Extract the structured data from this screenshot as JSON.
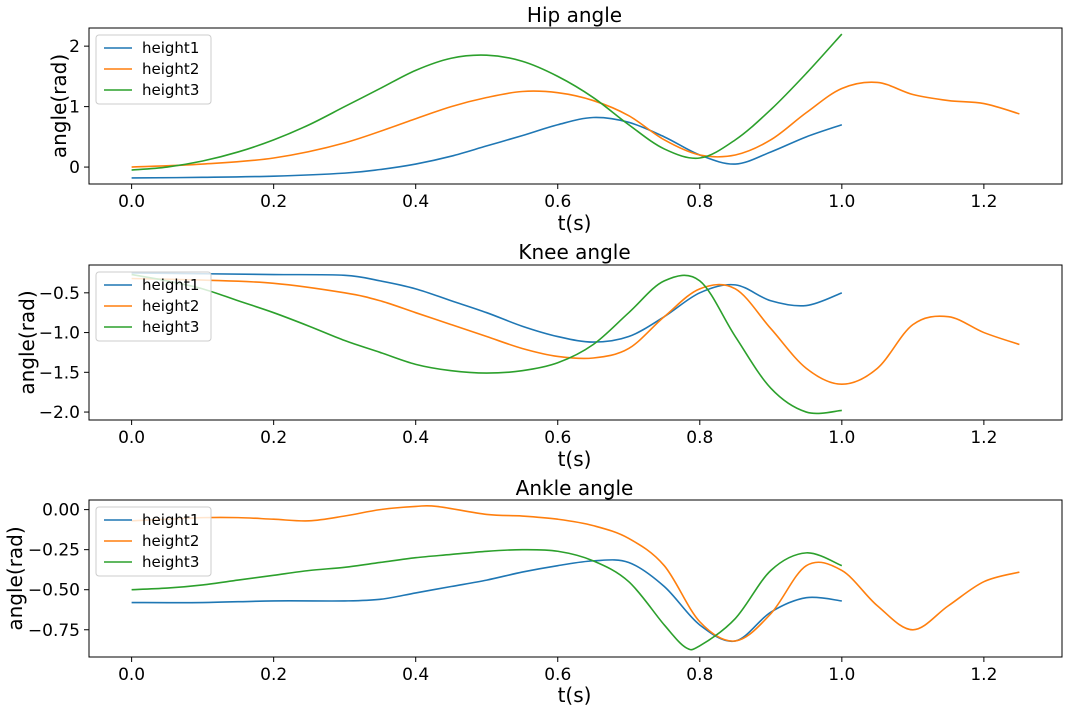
{
  "chart_data": [
    {
      "type": "line",
      "title": "Hip angle",
      "xlabel": "t(s)",
      "ylabel": "angle(rad)",
      "xlim": [
        -0.06,
        1.31
      ],
      "ylim": [
        -0.28,
        2.3
      ],
      "xticks": [
        0.0,
        0.2,
        0.4,
        0.6,
        0.8,
        1.0,
        1.2
      ],
      "xtick_labels": [
        "0.0",
        "0.2",
        "0.4",
        "0.6",
        "0.8",
        "1.0",
        "1.2"
      ],
      "yticks": [
        0,
        1,
        2
      ],
      "ytick_labels": [
        "0",
        "1",
        "2"
      ],
      "legend": "top-left",
      "series": [
        {
          "name": "height1",
          "color": "#1f77b4",
          "x": [
            0,
            0.1,
            0.2,
            0.3,
            0.35,
            0.4,
            0.45,
            0.5,
            0.55,
            0.6,
            0.65,
            0.7,
            0.75,
            0.8,
            0.85,
            0.9,
            0.95,
            1.0
          ],
          "y": [
            -0.18,
            -0.17,
            -0.15,
            -0.1,
            -0.04,
            0.05,
            0.18,
            0.35,
            0.52,
            0.7,
            0.82,
            0.74,
            0.5,
            0.2,
            0.05,
            0.25,
            0.5,
            0.7
          ]
        },
        {
          "name": "height2",
          "color": "#ff7f0e",
          "x": [
            0,
            0.1,
            0.2,
            0.3,
            0.4,
            0.45,
            0.5,
            0.55,
            0.6,
            0.65,
            0.7,
            0.75,
            0.8,
            0.85,
            0.9,
            0.95,
            1.0,
            1.05,
            1.1,
            1.15,
            1.2,
            1.25
          ],
          "y": [
            0.0,
            0.05,
            0.15,
            0.4,
            0.8,
            1.0,
            1.15,
            1.25,
            1.23,
            1.1,
            0.85,
            0.45,
            0.2,
            0.2,
            0.45,
            0.9,
            1.3,
            1.4,
            1.2,
            1.1,
            1.05,
            0.88
          ]
        },
        {
          "name": "height3",
          "color": "#2ca02c",
          "x": [
            0,
            0.05,
            0.1,
            0.15,
            0.2,
            0.25,
            0.3,
            0.35,
            0.4,
            0.45,
            0.5,
            0.55,
            0.6,
            0.65,
            0.7,
            0.75,
            0.8,
            0.85,
            0.9,
            0.95,
            1.0
          ],
          "y": [
            -0.05,
            0.0,
            0.1,
            0.25,
            0.45,
            0.7,
            1.0,
            1.3,
            1.6,
            1.8,
            1.85,
            1.75,
            1.5,
            1.15,
            0.7,
            0.3,
            0.15,
            0.45,
            0.95,
            1.55,
            2.2
          ]
        }
      ]
    },
    {
      "type": "line",
      "title": "Knee angle",
      "xlabel": "t(s)",
      "ylabel": "angle(rad)",
      "xlim": [
        -0.06,
        1.31
      ],
      "ylim": [
        -2.1,
        -0.15
      ],
      "xticks": [
        0.0,
        0.2,
        0.4,
        0.6,
        0.8,
        1.0,
        1.2
      ],
      "xtick_labels": [
        "0.0",
        "0.2",
        "0.4",
        "0.6",
        "0.8",
        "1.0",
        "1.2"
      ],
      "yticks": [
        -0.5,
        -1.0,
        -1.5,
        -2.0
      ],
      "ytick_labels": [
        "−0.5",
        "−1.0",
        "−1.5",
        "−2.0"
      ],
      "legend": "top-left",
      "series": [
        {
          "name": "height1",
          "color": "#1f77b4",
          "x": [
            0,
            0.1,
            0.2,
            0.3,
            0.35,
            0.4,
            0.45,
            0.5,
            0.55,
            0.6,
            0.65,
            0.7,
            0.75,
            0.8,
            0.85,
            0.9,
            0.95,
            1.0
          ],
          "y": [
            -0.25,
            -0.26,
            -0.27,
            -0.28,
            -0.35,
            -0.45,
            -0.6,
            -0.75,
            -0.92,
            -1.05,
            -1.12,
            -1.05,
            -0.8,
            -0.5,
            -0.4,
            -0.6,
            -0.66,
            -0.5
          ]
        },
        {
          "name": "height2",
          "color": "#ff7f0e",
          "x": [
            0,
            0.1,
            0.2,
            0.3,
            0.35,
            0.4,
            0.45,
            0.5,
            0.55,
            0.6,
            0.65,
            0.7,
            0.75,
            0.8,
            0.85,
            0.9,
            0.95,
            1.0,
            1.05,
            1.1,
            1.15,
            1.2,
            1.25
          ],
          "y": [
            -0.32,
            -0.34,
            -0.38,
            -0.5,
            -0.6,
            -0.75,
            -0.9,
            -1.05,
            -1.2,
            -1.3,
            -1.32,
            -1.2,
            -0.8,
            -0.45,
            -0.45,
            -0.95,
            -1.45,
            -1.65,
            -1.45,
            -0.9,
            -0.8,
            -1.0,
            -1.15
          ]
        },
        {
          "name": "height3",
          "color": "#2ca02c",
          "x": [
            0,
            0.05,
            0.1,
            0.15,
            0.2,
            0.25,
            0.3,
            0.35,
            0.4,
            0.45,
            0.5,
            0.55,
            0.6,
            0.65,
            0.7,
            0.75,
            0.8,
            0.85,
            0.9,
            0.95,
            1.0
          ],
          "y": [
            -0.27,
            -0.35,
            -0.45,
            -0.6,
            -0.75,
            -0.92,
            -1.1,
            -1.25,
            -1.4,
            -1.48,
            -1.51,
            -1.48,
            -1.38,
            -1.15,
            -0.75,
            -0.35,
            -0.35,
            -1.05,
            -1.7,
            -2.0,
            -1.98
          ]
        }
      ]
    },
    {
      "type": "line",
      "title": "Ankle angle",
      "xlabel": "t(s)",
      "ylabel": "angle(rad)",
      "xlim": [
        -0.06,
        1.31
      ],
      "ylim": [
        -0.92,
        0.06
      ],
      "xticks": [
        0.0,
        0.2,
        0.4,
        0.6,
        0.8,
        1.0,
        1.2
      ],
      "xtick_labels": [
        "0.0",
        "0.2",
        "0.4",
        "0.6",
        "0.8",
        "1.0",
        "1.2"
      ],
      "yticks": [
        0.0,
        -0.25,
        -0.5,
        -0.75
      ],
      "ytick_labels": [
        "0.00",
        "−0.25",
        "−0.50",
        "−0.75"
      ],
      "legend": "top-left",
      "series": [
        {
          "name": "height1",
          "color": "#1f77b4",
          "x": [
            0,
            0.1,
            0.2,
            0.3,
            0.35,
            0.4,
            0.45,
            0.5,
            0.55,
            0.6,
            0.65,
            0.7,
            0.75,
            0.8,
            0.85,
            0.9,
            0.95,
            1.0
          ],
          "y": [
            -0.58,
            -0.58,
            -0.57,
            -0.57,
            -0.56,
            -0.52,
            -0.48,
            -0.44,
            -0.39,
            -0.35,
            -0.32,
            -0.33,
            -0.48,
            -0.72,
            -0.82,
            -0.64,
            -0.55,
            -0.57
          ]
        },
        {
          "name": "height2",
          "color": "#ff7f0e",
          "x": [
            0,
            0.05,
            0.1,
            0.15,
            0.2,
            0.25,
            0.3,
            0.35,
            0.4,
            0.43,
            0.5,
            0.55,
            0.6,
            0.65,
            0.7,
            0.75,
            0.8,
            0.85,
            0.9,
            0.95,
            1.0,
            1.05,
            1.1,
            1.15,
            1.2,
            1.25
          ],
          "y": [
            -0.07,
            -0.06,
            -0.05,
            -0.05,
            -0.06,
            -0.07,
            -0.04,
            0.0,
            0.02,
            0.02,
            -0.03,
            -0.04,
            -0.06,
            -0.1,
            -0.18,
            -0.35,
            -0.7,
            -0.82,
            -0.65,
            -0.35,
            -0.38,
            -0.6,
            -0.75,
            -0.6,
            -0.45,
            -0.39
          ]
        },
        {
          "name": "height3",
          "color": "#2ca02c",
          "x": [
            0,
            0.05,
            0.1,
            0.15,
            0.2,
            0.25,
            0.3,
            0.35,
            0.4,
            0.45,
            0.5,
            0.55,
            0.6,
            0.65,
            0.7,
            0.75,
            0.78,
            0.8,
            0.85,
            0.9,
            0.95,
            1.0
          ],
          "y": [
            -0.5,
            -0.49,
            -0.47,
            -0.44,
            -0.41,
            -0.38,
            -0.36,
            -0.33,
            -0.3,
            -0.28,
            -0.26,
            -0.25,
            -0.26,
            -0.32,
            -0.45,
            -0.72,
            -0.86,
            -0.85,
            -0.68,
            -0.38,
            -0.27,
            -0.35
          ]
        }
      ]
    }
  ]
}
